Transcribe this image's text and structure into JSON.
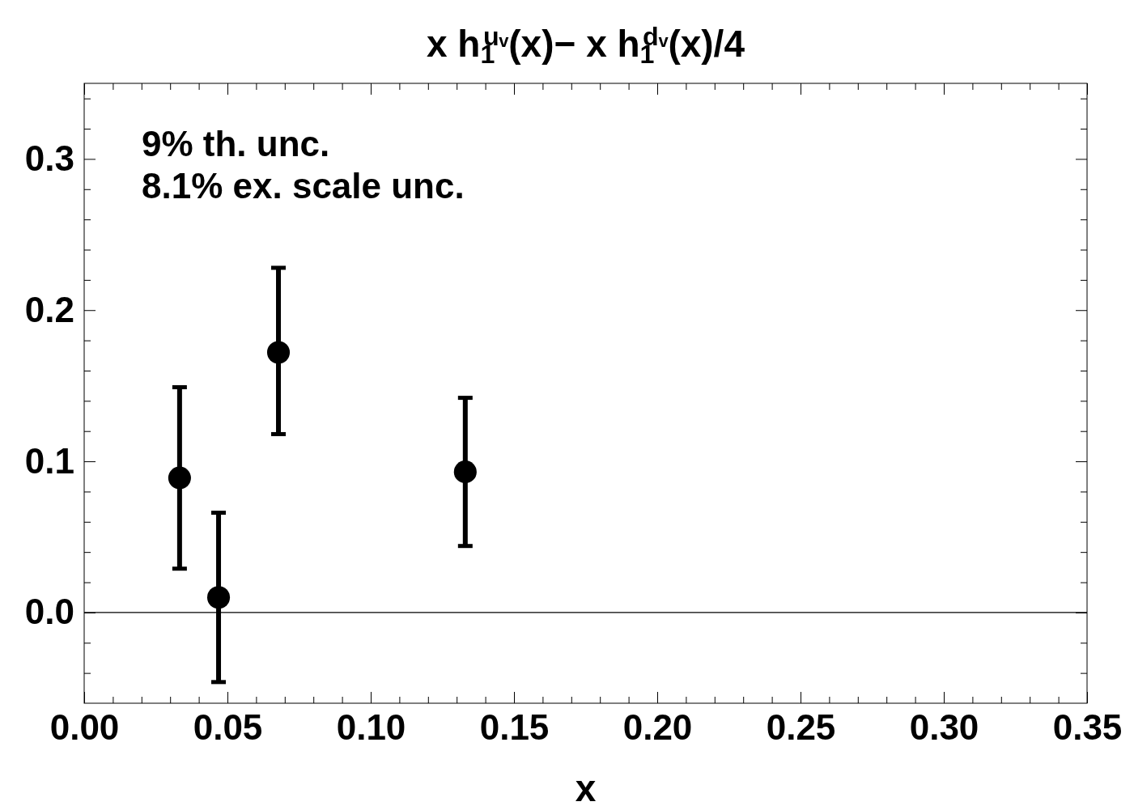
{
  "chart_data": {
    "type": "scatter",
    "title": "x h$_{1}$$^{uᵥ}$(x)− x h$_{1}$$^{dᵥ}$(x)/4",
    "xlabel": "x",
    "x": [
      0.0333,
      0.0469,
      0.0678,
      0.133
    ],
    "series": [
      {
        "color": "#000000",
        "values": [
          0.089,
          0.01,
          0.172,
          0.093
        ],
        "errors": [
          [
            0.029,
            0.149
          ],
          [
            -0.046,
            0.066
          ],
          [
            0.118,
            0.228
          ],
          [
            0.044,
            0.142
          ]
        ]
      }
    ],
    "marker": "circle",
    "xlim": [
      0,
      0.35
    ],
    "ylim": [
      -0.06,
      0.35
    ],
    "xticks": [
      {
        "value": 0,
        "label": "0.00"
      },
      {
        "value": 0.01,
        "label": null
      },
      {
        "value": 0.02,
        "label": null
      },
      {
        "value": 0.03,
        "label": null
      },
      {
        "value": 0.04,
        "label": null
      },
      {
        "value": 0.05,
        "label": "0.05"
      },
      {
        "value": 0.06,
        "label": null
      },
      {
        "value": 0.07,
        "label": null
      },
      {
        "value": 0.08,
        "label": null
      },
      {
        "value": 0.09,
        "label": null
      },
      {
        "value": 0.1,
        "label": "0.10"
      },
      {
        "value": 0.11,
        "label": null
      },
      {
        "value": 0.12,
        "label": null
      },
      {
        "value": 0.13,
        "label": null
      },
      {
        "value": 0.14,
        "label": null
      },
      {
        "value": 0.15,
        "label": "0.15"
      },
      {
        "value": 0.16,
        "label": null
      },
      {
        "value": 0.17,
        "label": null
      },
      {
        "value": 0.18,
        "label": null
      },
      {
        "value": 0.19,
        "label": null
      },
      {
        "value": 0.2,
        "label": "0.20"
      },
      {
        "value": 0.21,
        "label": null
      },
      {
        "value": 0.22,
        "label": null
      },
      {
        "value": 0.23,
        "label": null
      },
      {
        "value": 0.24,
        "label": null
      },
      {
        "value": 0.25,
        "label": "0.25"
      },
      {
        "value": 0.26,
        "label": null
      },
      {
        "value": 0.27,
        "label": null
      },
      {
        "value": 0.28,
        "label": null
      },
      {
        "value": 0.29,
        "label": null
      },
      {
        "value": 0.3,
        "label": "0.30"
      },
      {
        "value": 0.31,
        "label": null
      },
      {
        "value": 0.32,
        "label": null
      },
      {
        "value": 0.33,
        "label": null
      },
      {
        "value": 0.34,
        "label": null
      },
      {
        "value": 0.35,
        "label": "0.35"
      }
    ],
    "yticks": [
      {
        "value": -0.04,
        "label": null
      },
      {
        "value": -0.02,
        "label": null
      },
      {
        "value": 0,
        "label": "0.0"
      },
      {
        "value": 0.02,
        "label": null
      },
      {
        "value": 0.04,
        "label": null
      },
      {
        "value": 0.06,
        "label": null
      },
      {
        "value": 0.08,
        "label": null
      },
      {
        "value": 0.1,
        "label": "0.1"
      },
      {
        "value": 0.12,
        "label": null
      },
      {
        "value": 0.14,
        "label": null
      },
      {
        "value": 0.16,
        "label": null
      },
      {
        "value": 0.18,
        "label": null
      },
      {
        "value": 0.2,
        "label": "0.2"
      },
      {
        "value": 0.22,
        "label": null
      },
      {
        "value": 0.24,
        "label": null
      },
      {
        "value": 0.26,
        "label": null
      },
      {
        "value": 0.28,
        "label": null
      },
      {
        "value": 0.3,
        "label": "0.3"
      },
      {
        "value": 0.32,
        "label": null
      },
      {
        "value": 0.34,
        "label": null
      }
    ],
    "ref_lines": [
      {
        "axis": "y",
        "value": 0,
        "color": "#000000"
      }
    ],
    "annotations": [
      "9% th. unc.",
      "8.1% ex. scale unc."
    ]
  }
}
